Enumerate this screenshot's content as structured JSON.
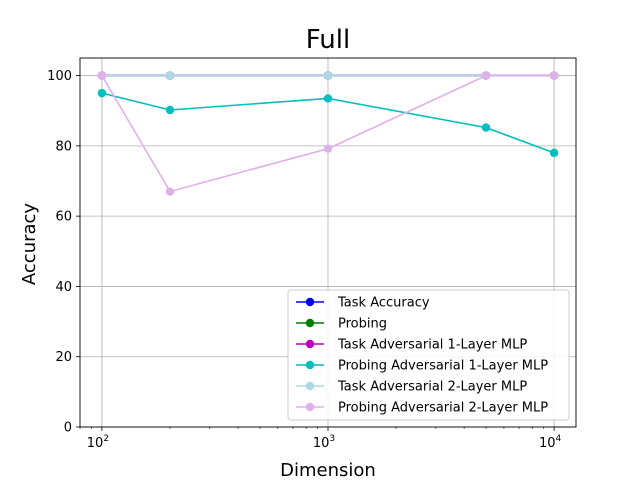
{
  "chart_data": {
    "type": "line",
    "title": "Full",
    "xlabel": "Dimension",
    "ylabel": "Accuracy",
    "xscale": "log",
    "xlim": [
      80,
      12500
    ],
    "ylim": [
      0,
      105
    ],
    "x": [
      100,
      200,
      1000,
      5000,
      10000
    ],
    "x_ticks": [
      {
        "value": 100,
        "base": "10",
        "exp": "2"
      },
      {
        "value": 1000,
        "base": "10",
        "exp": "3"
      },
      {
        "value": 10000,
        "base": "10",
        "exp": "4"
      }
    ],
    "y_ticks": [
      "0",
      "20",
      "40",
      "60",
      "80",
      "100"
    ],
    "grid": true,
    "legend_position": "lower-right",
    "series": [
      {
        "name": "Task Accuracy",
        "color": "#0000ff",
        "values": [
          100,
          100,
          100,
          100,
          100
        ]
      },
      {
        "name": "Probing",
        "color": "#008000",
        "values": [
          100,
          100,
          100,
          100,
          100
        ]
      },
      {
        "name": "Task Adversarial 1-Layer MLP",
        "color": "#bf00bf",
        "values": [
          100,
          100,
          100,
          100,
          100
        ]
      },
      {
        "name": "Probing Adversarial 1-Layer MLP",
        "color": "#00bfbf",
        "values": [
          95,
          90.2,
          93.5,
          85.2,
          78
        ]
      },
      {
        "name": "Task Adversarial 2-Layer MLP",
        "color": "#add8e6",
        "values": [
          100,
          100,
          100,
          100,
          100
        ]
      },
      {
        "name": "Probing Adversarial 2-Layer MLP",
        "color": "#e0b0e8",
        "values": [
          100,
          67,
          79.2,
          100,
          100
        ]
      }
    ]
  }
}
